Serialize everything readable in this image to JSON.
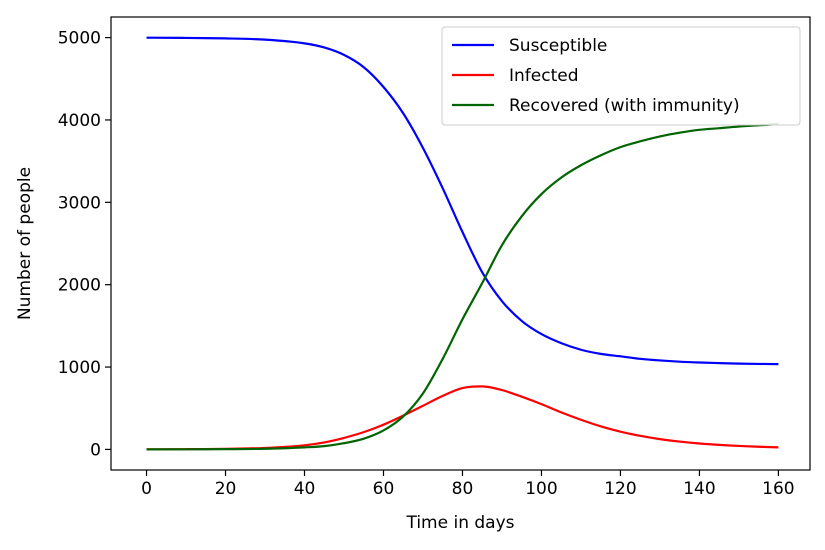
{
  "chart_data": {
    "type": "line",
    "title": "",
    "xlabel": "Time in days",
    "ylabel": "Number of people",
    "xlim": [
      -9,
      168
    ],
    "ylim": [
      -250,
      5250
    ],
    "xticks": [
      0,
      20,
      40,
      60,
      80,
      100,
      120,
      140,
      160
    ],
    "yticks": [
      0,
      1000,
      2000,
      3000,
      4000,
      5000
    ],
    "xtick_labels": [
      "0",
      "20",
      "40",
      "60",
      "80",
      "100",
      "120",
      "140",
      "160"
    ],
    "ytick_labels": [
      "0",
      "1000",
      "2000",
      "3000",
      "4000",
      "5000"
    ],
    "grid": false,
    "legend_position": "top-right",
    "x": [
      0,
      10,
      20,
      30,
      40,
      45,
      50,
      55,
      60,
      65,
      70,
      75,
      80,
      85,
      90,
      95,
      100,
      105,
      110,
      115,
      120,
      125,
      130,
      135,
      140,
      145,
      150,
      155,
      160
    ],
    "series": [
      {
        "name": "Susceptible",
        "color": "#0000ff",
        "values": [
          4999,
          4996,
          4990,
          4975,
          4930,
          4880,
          4790,
          4640,
          4400,
          4080,
          3660,
          3170,
          2640,
          2150,
          1800,
          1560,
          1400,
          1290,
          1210,
          1160,
          1130,
          1100,
          1080,
          1065,
          1055,
          1048,
          1042,
          1038,
          1035
        ]
      },
      {
        "name": "Infected",
        "color": "#ff0000",
        "values": [
          1,
          3,
          7,
          18,
          50,
          85,
          140,
          210,
          300,
          410,
          530,
          650,
          745,
          765,
          720,
          640,
          550,
          450,
          360,
          280,
          215,
          165,
          125,
          95,
          72,
          55,
          42,
          32,
          25
        ]
      },
      {
        "name": "Recovered (with immunity)",
        "color": "#006400",
        "values": [
          0,
          1,
          3,
          8,
          25,
          40,
          75,
          130,
          230,
          400,
          680,
          1100,
          1580,
          2020,
          2480,
          2830,
          3100,
          3300,
          3450,
          3570,
          3670,
          3740,
          3800,
          3845,
          3880,
          3900,
          3920,
          3935,
          3950
        ]
      }
    ]
  }
}
